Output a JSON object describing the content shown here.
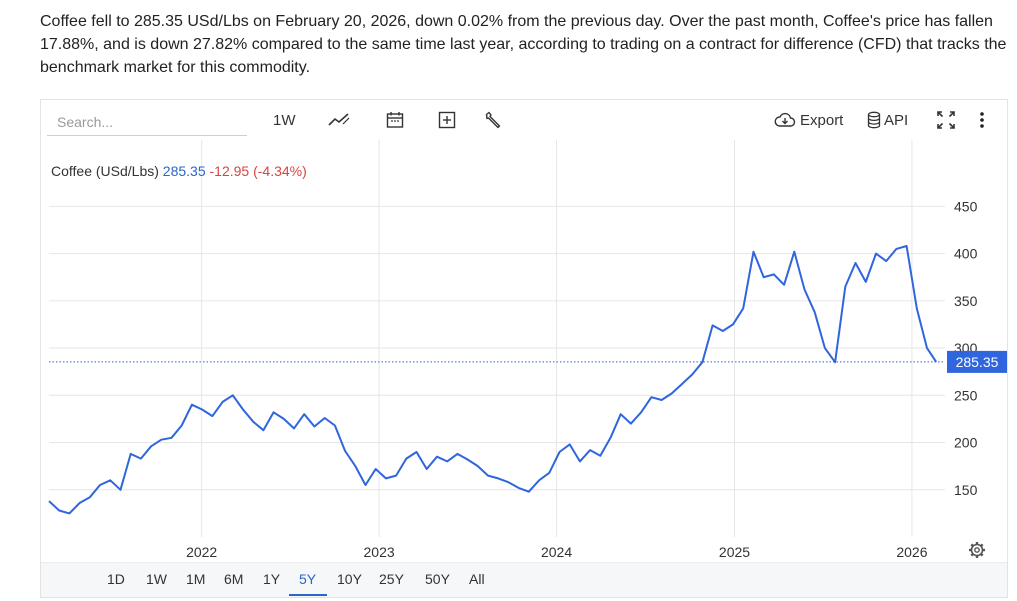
{
  "summary_text": "Coffee fell to 285.35 USd/Lbs on February 20, 2026, down 0.02% from the previous day. Over the past month, Coffee's price has fallen 17.88%, and is down 27.82% compared to the same time last year, according to trading on a contract for difference (CFD) that tracks the benchmark market for this commodity.",
  "toolbar": {
    "search_placeholder": "Search...",
    "interval_label": "1W",
    "export_label": "Export",
    "api_label": "API"
  },
  "legend": {
    "name": "Coffee (USd/Lbs)",
    "value": "285.35",
    "change": "-12.95 (-4.34%)"
  },
  "price_tag": "285.35",
  "ranges": [
    "1D",
    "1W",
    "1M",
    "6M",
    "1Y",
    "5Y",
    "10Y",
    "25Y",
    "50Y",
    "All"
  ],
  "active_range": "5Y",
  "colors": {
    "line": "#2f66dd",
    "accent": "#2b66c8",
    "negative": "#d9443f",
    "tag_bg": "#2f66dd"
  },
  "icons": [
    "line-chart-icon",
    "calendar-icon",
    "plus-square-icon",
    "wrench-icon",
    "cloud-download-icon",
    "database-icon",
    "fullscreen-icon",
    "more-vert-icon",
    "settings-gear-icon"
  ],
  "chart_data": {
    "type": "line",
    "series": [
      {
        "name": "Coffee (USd/Lbs)",
        "x": [
          "2021-02-21",
          "2021-03-14",
          "2021-04-04",
          "2021-04-25",
          "2021-05-16",
          "2021-06-06",
          "2021-06-27",
          "2021-07-18",
          "2021-08-08",
          "2021-08-29",
          "2021-09-19",
          "2021-10-10",
          "2021-10-31",
          "2021-11-21",
          "2021-12-12",
          "2022-01-02",
          "2022-01-23",
          "2022-02-13",
          "2022-03-06",
          "2022-03-27",
          "2022-04-17",
          "2022-05-08",
          "2022-05-29",
          "2022-06-19",
          "2022-07-10",
          "2022-07-31",
          "2022-08-21",
          "2022-09-11",
          "2022-10-02",
          "2022-10-23",
          "2022-11-13",
          "2022-12-04",
          "2022-12-25",
          "2023-01-15",
          "2023-02-05",
          "2023-02-26",
          "2023-03-19",
          "2023-04-09",
          "2023-04-30",
          "2023-05-21",
          "2023-06-11",
          "2023-07-02",
          "2023-07-23",
          "2023-08-13",
          "2023-09-03",
          "2023-09-24",
          "2023-10-15",
          "2023-11-05",
          "2023-11-26",
          "2023-12-17",
          "2024-01-07",
          "2024-01-28",
          "2024-02-18",
          "2024-03-10",
          "2024-03-31",
          "2024-04-21",
          "2024-05-12",
          "2024-06-02",
          "2024-06-23",
          "2024-07-14",
          "2024-08-04",
          "2024-08-25",
          "2024-09-15",
          "2024-10-06",
          "2024-10-27",
          "2024-11-17",
          "2024-12-08",
          "2024-12-29",
          "2025-01-19",
          "2025-02-09",
          "2025-03-02",
          "2025-03-23",
          "2025-04-13",
          "2025-05-04",
          "2025-05-25",
          "2025-06-15",
          "2025-07-06",
          "2025-07-27",
          "2025-08-17",
          "2025-09-07",
          "2025-09-28",
          "2025-10-19",
          "2025-11-09",
          "2025-11-30",
          "2025-12-21",
          "2026-01-11",
          "2026-02-01",
          "2026-02-20"
        ],
        "values": [
          138,
          128,
          125,
          136,
          142,
          155,
          160,
          150,
          188,
          183,
          196,
          203,
          205,
          218,
          240,
          235,
          228,
          243,
          250,
          235,
          222,
          213,
          232,
          225,
          215,
          230,
          217,
          226,
          218,
          191,
          175,
          155,
          172,
          162,
          165,
          183,
          190,
          172,
          185,
          180,
          188,
          182,
          175,
          165,
          162,
          158,
          152,
          148,
          160,
          168,
          190,
          198,
          180,
          192,
          186,
          205,
          230,
          220,
          232,
          248,
          245,
          252,
          262,
          272,
          285,
          324,
          318,
          325,
          342,
          402,
          375,
          378,
          367,
          402,
          362,
          338,
          300,
          285,
          365,
          390,
          370,
          400,
          392,
          405,
          408,
          342,
          300,
          285.35
        ]
      }
    ],
    "x_ticks": [
      "2022",
      "2023",
      "2024",
      "2025",
      "2026"
    ],
    "y_ticks": [
      150,
      200,
      250,
      300,
      350,
      400,
      450
    ],
    "ylim": [
      100,
      480
    ],
    "xlim": [
      "2021-02-21",
      "2026-03-10"
    ],
    "grid": true,
    "last_value": 285.35
  }
}
